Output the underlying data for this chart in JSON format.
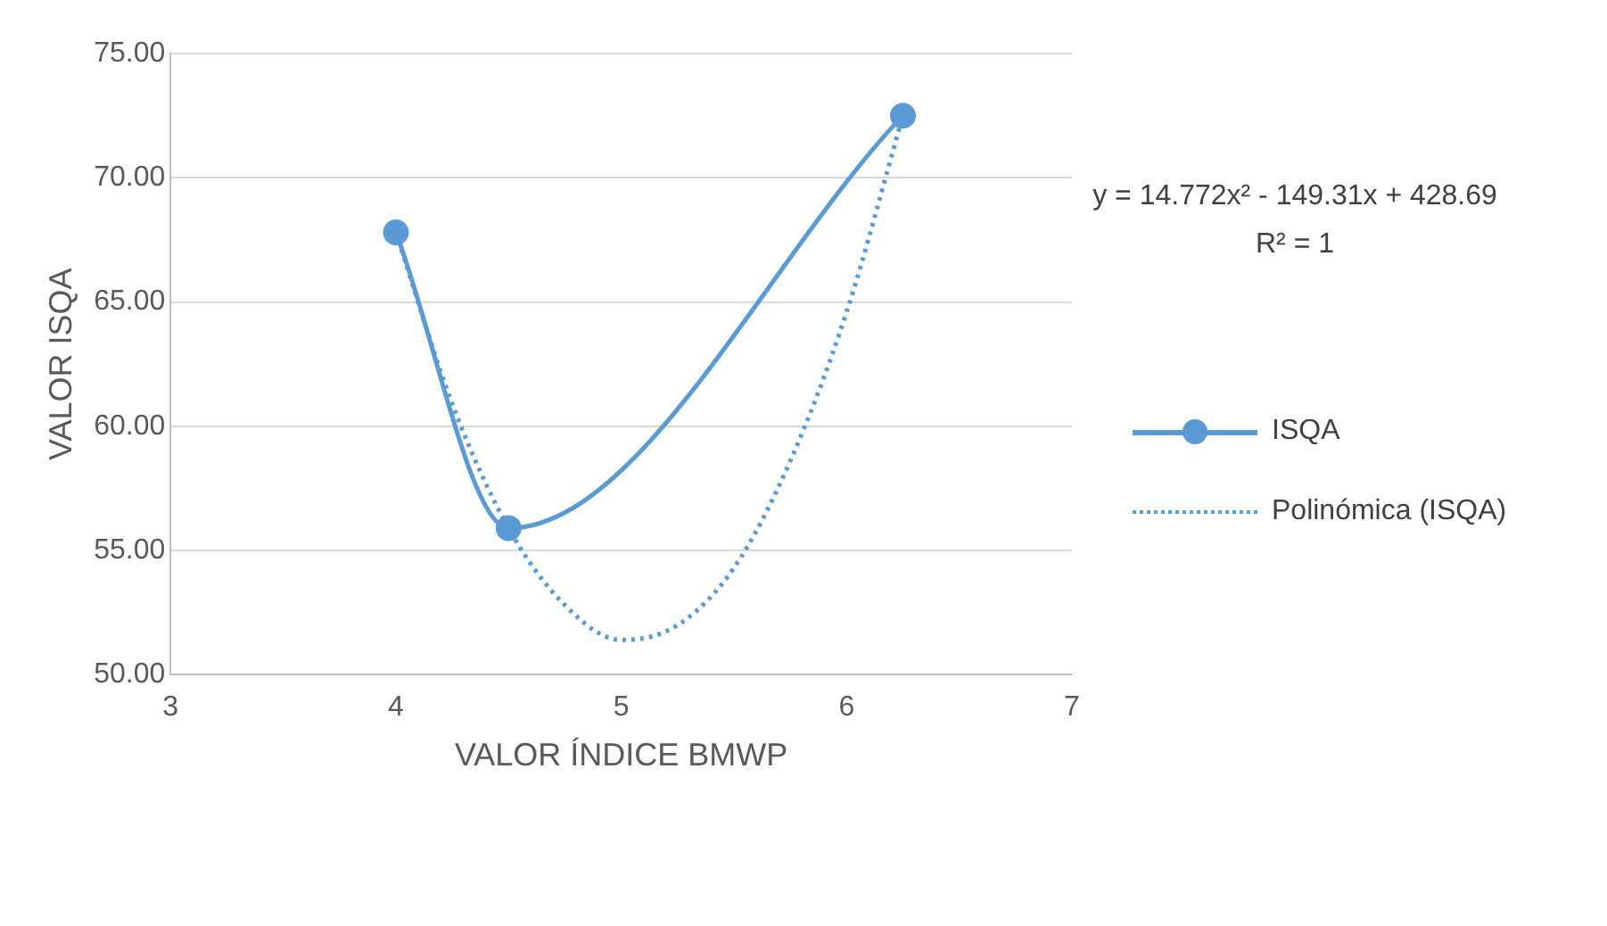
{
  "chart_data": {
    "type": "line",
    "xlabel": "VALOR ÍNDICE BMWP",
    "ylabel": "VALOR ISQA",
    "xlim": [
      3,
      7
    ],
    "xticks": [
      3,
      4,
      5,
      6,
      7
    ],
    "ylim": [
      50,
      75
    ],
    "yticks": [
      {
        "value": 50,
        "label": "50.00"
      },
      {
        "value": 55,
        "label": "55.00"
      },
      {
        "value": 60,
        "label": "60.00"
      },
      {
        "value": 65,
        "label": "65.00"
      },
      {
        "value": 70,
        "label": "70.00"
      },
      {
        "value": 75,
        "label": "75.00"
      }
    ],
    "grid": "y",
    "legend": "right",
    "series": [
      {
        "name": "ISQA",
        "color": "#5b9bd5",
        "x": [
          4,
          4.5,
          6.25
        ],
        "values": [
          67.8,
          55.9,
          72.5
        ],
        "marker": "circle",
        "line_style": "solid"
      },
      {
        "name": "Polinómica (ISQA)",
        "color": "#5b9bd5",
        "type": "line",
        "x": [
          4,
          4.25,
          4.5,
          4.75,
          5,
          5.25,
          5.5,
          5.75,
          6,
          6.25
        ],
        "values": [
          67.8,
          60.9,
          55.9,
          52.8,
          51.4,
          52.0,
          54.3,
          58.6,
          64.6,
          72.5
        ],
        "marker": "none",
        "line_style": "dotted"
      }
    ],
    "annotations": [
      "y = 14.772x² - 149.31x + 428.69",
      "R² = 1"
    ]
  }
}
